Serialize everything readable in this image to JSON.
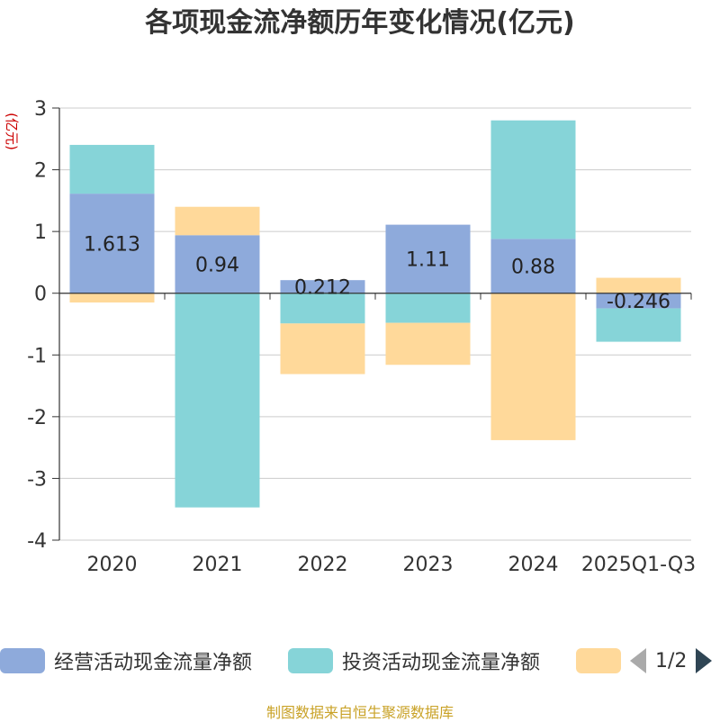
{
  "chart_data": {
    "type": "bar",
    "stacked": true,
    "title": "各项现金流净额历年变化情况(亿元)",
    "ylabel": "(亿元)",
    "xlabel": "",
    "categories": [
      "2020",
      "2021",
      "2022",
      "2023",
      "2024",
      "2025Q1-Q3"
    ],
    "ylim": [
      -4,
      3
    ],
    "yticks": [
      3,
      2,
      1,
      0,
      -1,
      -2,
      -3,
      -4
    ],
    "series": [
      {
        "name": "经营活动现金流量净额",
        "color": "#8eaadb",
        "values": [
          1.613,
          0.94,
          0.212,
          1.11,
          0.88,
          -0.246
        ],
        "labels": [
          "1.613",
          "0.94",
          "0.212",
          "1.11",
          "0.88",
          "-0.246"
        ]
      },
      {
        "name": "投资活动现金流量净额",
        "color": "#86d4d8",
        "values": [
          0.79,
          -3.47,
          -0.49,
          -0.48,
          1.92,
          -0.54
        ]
      },
      {
        "name": "",
        "color": "#ffd99a",
        "values": [
          -0.15,
          0.46,
          -0.82,
          -0.68,
          -2.38,
          0.25
        ]
      }
    ]
  },
  "legend": {
    "items": [
      {
        "label": "经营活动现金流量净额",
        "color": "#8eaadb"
      },
      {
        "label": "投资活动现金流量净额",
        "color": "#86d4d8"
      },
      {
        "label": "",
        "color": "#ffd99a"
      }
    ],
    "page_text": "1/2"
  },
  "source_text": "制图数据来自恒生聚源数据库"
}
